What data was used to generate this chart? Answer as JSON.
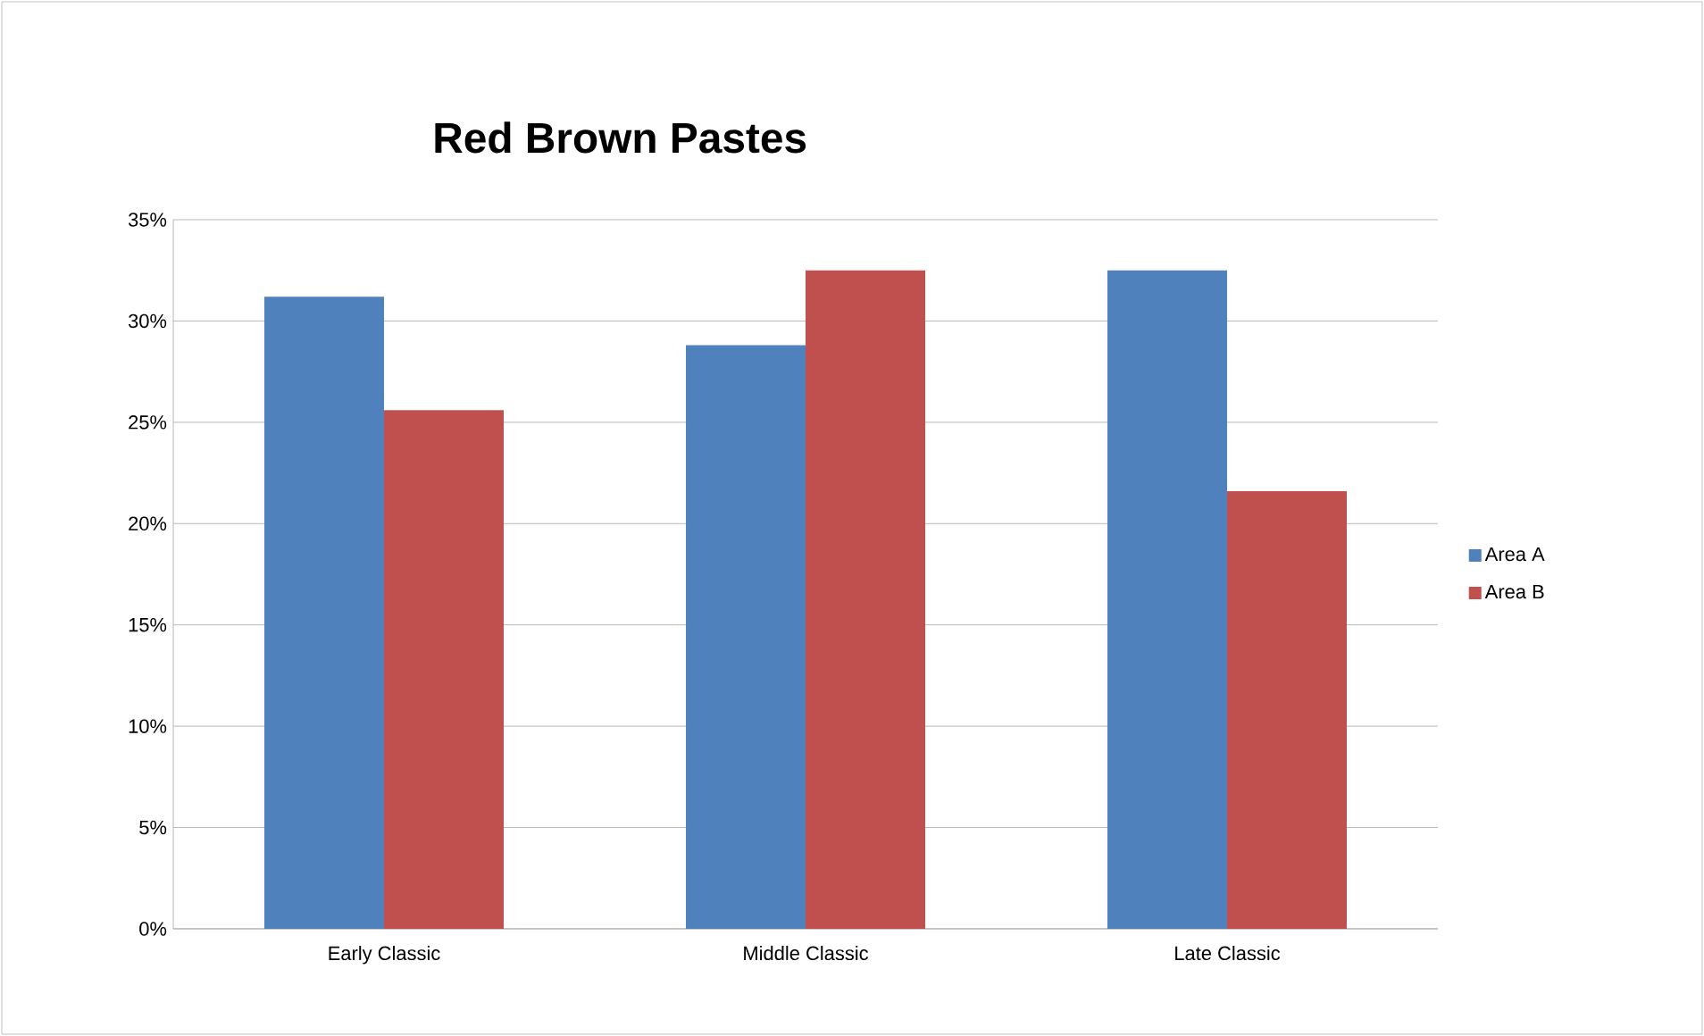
{
  "chart_data": {
    "type": "bar",
    "title": "Red Brown Pastes",
    "categories": [
      "Early Classic",
      "Middle Classic",
      "Late Classic"
    ],
    "series": [
      {
        "name": "Area A",
        "color": "#4f81bd",
        "values": [
          31.2,
          28.8,
          32.5
        ]
      },
      {
        "name": "Area B",
        "color": "#c0504d",
        "values": [
          25.6,
          32.5,
          21.6
        ]
      }
    ],
    "ylim": [
      0,
      35
    ],
    "yticks": [
      {
        "value": 0,
        "label": "0%"
      },
      {
        "value": 5,
        "label": "5%"
      },
      {
        "value": 10,
        "label": "10%"
      },
      {
        "value": 15,
        "label": "15%"
      },
      {
        "value": 20,
        "label": "20%"
      },
      {
        "value": 25,
        "label": "25%"
      },
      {
        "value": 30,
        "label": "30%"
      },
      {
        "value": 35,
        "label": "35%"
      }
    ],
    "grid": "y",
    "legend": "right"
  }
}
